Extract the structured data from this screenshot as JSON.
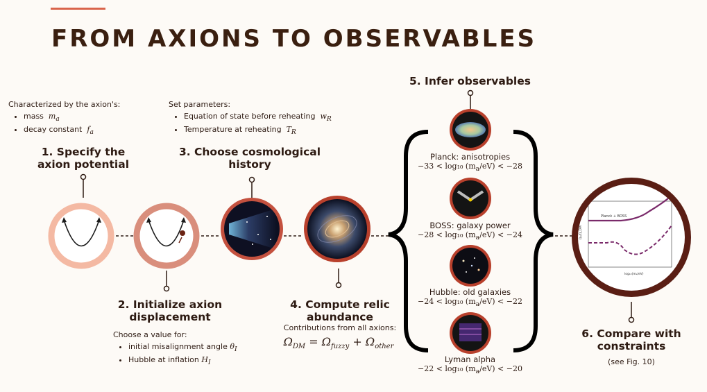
{
  "title": "FROM AXIONS TO OBSERVABLES",
  "step1": {
    "label": "1. Specify the axion potential",
    "intro": "Characterized by the axion's:",
    "items": [
      {
        "text": "mass",
        "math": "m",
        "sub": "a"
      },
      {
        "text": "decay constant",
        "math": "f",
        "sub": "a"
      }
    ]
  },
  "step2": {
    "label": "2. Initialize axion displacement",
    "intro": "Choose a value for:",
    "items": [
      {
        "text": "initial misalignment angle",
        "math": "θ",
        "sub": "I"
      },
      {
        "text": "Hubble at inflation",
        "math": "H",
        "sub": "I"
      }
    ]
  },
  "step3": {
    "label": "3. Choose cosmological history",
    "intro": "Set parameters:",
    "items": [
      {
        "text": "Equation of state before reheating",
        "math": "w",
        "sub": "R"
      },
      {
        "text": "Temperature at reheating",
        "math": "T",
        "sub": "R"
      }
    ]
  },
  "step4": {
    "label": "4. Compute relic abundance",
    "intro": "Contributions from all axions:",
    "equation": {
      "lhs": "Ω",
      "lhs_sub": "DM",
      "rhs1": "Ω",
      "rhs1_sub": "fuzzy",
      "rhs2": "Ω",
      "rhs2_sub": "other"
    }
  },
  "step5": {
    "label": "5. Infer observables",
    "observables": [
      {
        "name": "Planck: anisotropies",
        "low": "−33",
        "high": "−28"
      },
      {
        "name": "BOSS: galaxy power",
        "low": "−28",
        "high": "−24"
      },
      {
        "name": "Hubble: old galaxies",
        "low": "−24",
        "high": "−22"
      },
      {
        "name": "Lyman alpha",
        "low": "−22",
        "high": "−20"
      }
    ],
    "range_mid": "< log₁₀ (m",
    "range_unit": "/eV) <"
  },
  "step6": {
    "label": "6. Compare with constraints",
    "note": "(see Fig. 10)",
    "plot_labels": {
      "planck": "Planck + BOSS",
      "ylabel": "Ωₐ/Ω_DM",
      "xlabel": "log₁₀(mₐ/eV)"
    }
  },
  "colors": {
    "accent": "#d9644b",
    "text": "#2d1a12",
    "circle1": "#f4b9a3",
    "circle2": "#d98e7c",
    "circle3": "#c4513f",
    "circle4": "#b8402c",
    "circle6": "#5a1e14",
    "brace": "#000000"
  }
}
